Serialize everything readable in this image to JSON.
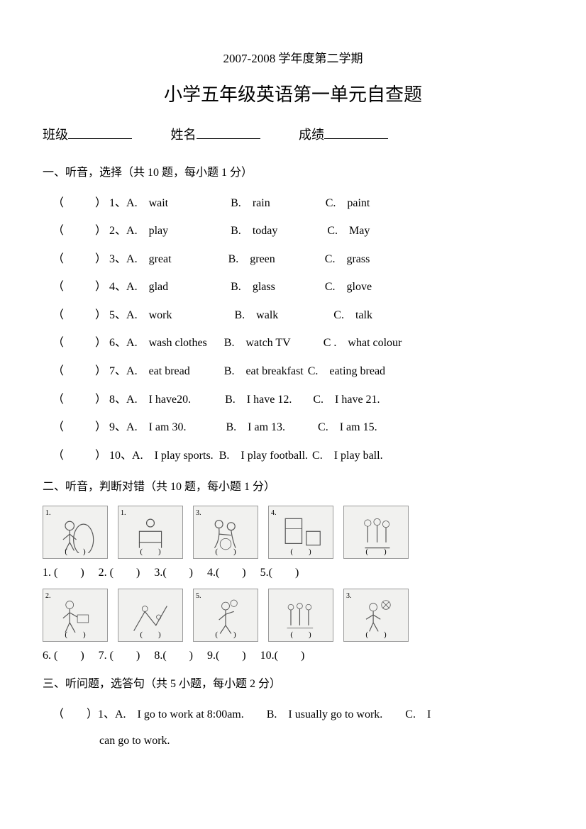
{
  "header": {
    "subtitle": "2007-2008 学年度第二学期",
    "title": "小学五年级英语第一单元自查题"
  },
  "info": {
    "class_label": "班级",
    "name_label": "姓名",
    "score_label": "成绩"
  },
  "section1": {
    "title": "一、听音，选择（共 10 题，每小题 1 分）",
    "items": [
      {
        "n": "1",
        "a": "wait",
        "b": "rain",
        "c": "paint"
      },
      {
        "n": "2",
        "a": "play",
        "b": "today",
        "c": "May"
      },
      {
        "n": "3",
        "a": "great",
        "b": "green",
        "c": "grass"
      },
      {
        "n": "4",
        "a": "glad",
        "b": "glass",
        "c": "glove"
      },
      {
        "n": "5",
        "a": "work",
        "b": "walk",
        "c": "talk"
      },
      {
        "n": "6",
        "a": "wash clothes",
        "b": "watch TV",
        "c": "what colour",
        "cprefix": "C ."
      },
      {
        "n": "7",
        "a": "eat bread",
        "b": "eat breakfast",
        "c": "eating bread"
      },
      {
        "n": "8",
        "a": "I have20.",
        "b": "I have 12.",
        "c": "I have 21."
      },
      {
        "n": "9",
        "a": "I am 30.",
        "b": "I am 13.",
        "c": "I am 15."
      },
      {
        "n": "10",
        "a": "I play sports.",
        "b": "I play football.",
        "c": "I play ball."
      }
    ]
  },
  "section2": {
    "title": "二、听音，判断对错（共 10 题，每小题 1 分）",
    "row1_labels": "1. (　　)　 2. (　　)　 3.(　　)　 4.(　　)　 5.(　　)",
    "row2_labels": "6. (　　)　 7. (　　)　 8.(　　)　 9.(　　)　 10.(　　)",
    "img_nums_row1": [
      "1.",
      "1.",
      "3.",
      "4.",
      ""
    ],
    "img_nums_row2": [
      "2.",
      "",
      "5.",
      "",
      "3."
    ]
  },
  "section3": {
    "title": "三、听问题，选答句（共 5 小题，每小题 2 分）",
    "q1_line1": "（　　）1、A.　I go to work at 8:00am.　　B.　I usually go to work.　　C.　I",
    "q1_line2": "can go to work."
  },
  "paren_blank": "（　　）",
  "paren_inner": "(　　)"
}
